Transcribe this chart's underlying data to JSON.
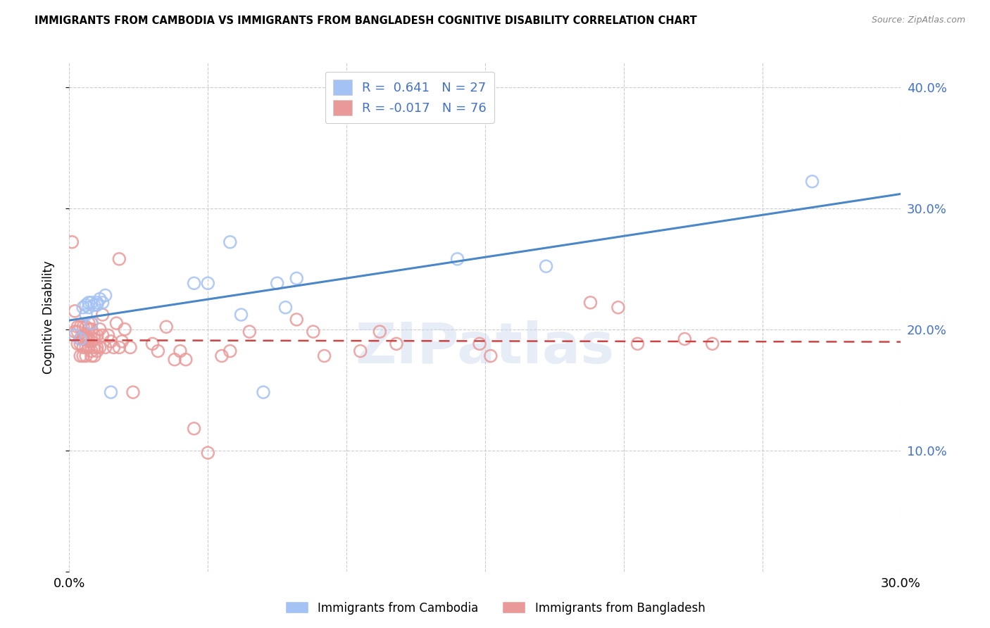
{
  "title": "IMMIGRANTS FROM CAMBODIA VS IMMIGRANTS FROM BANGLADESH COGNITIVE DISABILITY CORRELATION CHART",
  "source": "Source: ZipAtlas.com",
  "ylabel": "Cognitive Disability",
  "xlim": [
    0.0,
    0.3
  ],
  "ylim": [
    0.0,
    0.42
  ],
  "yticks": [
    0.0,
    0.1,
    0.2,
    0.3,
    0.4
  ],
  "ytick_labels": [
    "",
    "10.0%",
    "20.0%",
    "30.0%",
    "40.0%"
  ],
  "xticks": [
    0.0,
    0.05,
    0.1,
    0.15,
    0.2,
    0.25,
    0.3
  ],
  "xtick_labels": [
    "0.0%",
    "",
    "",
    "",
    "",
    "",
    "30.0%"
  ],
  "cambodia_color": "#a4c2f4",
  "bangladesh_color": "#ea9999",
  "trend_cambodia_color": "#4a86c8",
  "trend_bangladesh_color": "#cc4444",
  "R_cambodia": 0.641,
  "N_cambodia": 27,
  "R_bangladesh": -0.017,
  "N_bangladesh": 76,
  "watermark": "ZIPatlas",
  "legend_label_cambodia": "Immigrants from Cambodia",
  "legend_label_bangladesh": "Immigrants from Bangladesh",
  "tick_color": "#4472c4",
  "cambodia_x": [
    0.002,
    0.004,
    0.005,
    0.006,
    0.006,
    0.007,
    0.007,
    0.008,
    0.008,
    0.009,
    0.01,
    0.01,
    0.011,
    0.012,
    0.013,
    0.015,
    0.045,
    0.05,
    0.058,
    0.062,
    0.07,
    0.075,
    0.078,
    0.082,
    0.14,
    0.172,
    0.268
  ],
  "cambodia_y": [
    0.195,
    0.192,
    0.218,
    0.212,
    0.22,
    0.222,
    0.218,
    0.205,
    0.222,
    0.22,
    0.222,
    0.22,
    0.225,
    0.222,
    0.228,
    0.148,
    0.238,
    0.238,
    0.272,
    0.212,
    0.148,
    0.238,
    0.218,
    0.242,
    0.258,
    0.252,
    0.322
  ],
  "bangladesh_x": [
    0.001,
    0.002,
    0.002,
    0.003,
    0.003,
    0.003,
    0.004,
    0.004,
    0.004,
    0.004,
    0.005,
    0.005,
    0.005,
    0.005,
    0.005,
    0.006,
    0.006,
    0.006,
    0.006,
    0.006,
    0.007,
    0.007,
    0.007,
    0.007,
    0.007,
    0.008,
    0.008,
    0.008,
    0.008,
    0.008,
    0.009,
    0.009,
    0.009,
    0.009,
    0.01,
    0.01,
    0.01,
    0.011,
    0.011,
    0.012,
    0.012,
    0.013,
    0.014,
    0.015,
    0.016,
    0.017,
    0.018,
    0.018,
    0.019,
    0.02,
    0.022,
    0.023,
    0.03,
    0.032,
    0.035,
    0.038,
    0.04,
    0.042,
    0.045,
    0.05,
    0.055,
    0.058,
    0.065,
    0.082,
    0.088,
    0.092,
    0.105,
    0.112,
    0.118,
    0.148,
    0.152,
    0.188,
    0.198,
    0.205,
    0.222,
    0.232
  ],
  "bangladesh_y": [
    0.272,
    0.198,
    0.215,
    0.188,
    0.198,
    0.202,
    0.178,
    0.188,
    0.192,
    0.202,
    0.178,
    0.185,
    0.192,
    0.195,
    0.202,
    0.178,
    0.185,
    0.192,
    0.195,
    0.202,
    0.185,
    0.19,
    0.2,
    0.205,
    0.192,
    0.178,
    0.182,
    0.19,
    0.2,
    0.205,
    0.178,
    0.185,
    0.192,
    0.195,
    0.182,
    0.185,
    0.195,
    0.185,
    0.2,
    0.195,
    0.212,
    0.185,
    0.195,
    0.19,
    0.185,
    0.205,
    0.185,
    0.258,
    0.19,
    0.2,
    0.185,
    0.148,
    0.188,
    0.182,
    0.202,
    0.175,
    0.182,
    0.175,
    0.118,
    0.098,
    0.178,
    0.182,
    0.198,
    0.208,
    0.198,
    0.178,
    0.182,
    0.198,
    0.188,
    0.188,
    0.178,
    0.222,
    0.218,
    0.188,
    0.192,
    0.188
  ]
}
